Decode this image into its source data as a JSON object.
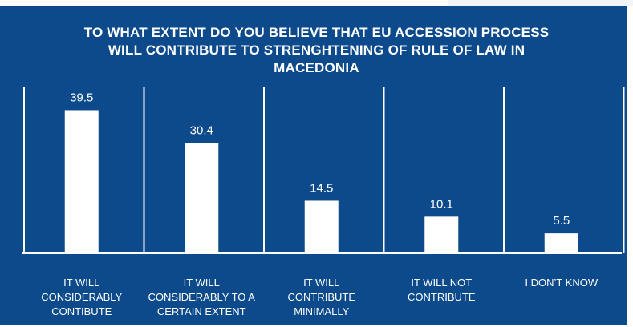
{
  "chart_data": {
    "type": "bar",
    "title_lines": [
      "TO WHAT EXTENT DO YOU BELIEVE THAT EU ACCESSION PROCESS",
      "WILL CONTRIBUTE TO STRENGHTENING OF RULE OF LAW IN",
      "MACEDONIA"
    ],
    "categories": [
      "IT WILL CONSIDERABLY CONTIBUTE",
      "IT WILL CONSIDERABLY TO A CERTAIN EXTENT",
      "IT WILL CONTRIBUTE MINIMALLY",
      "IT WILL NOT CONTRIBUTE",
      "I DON’T KNOW"
    ],
    "category_lines": [
      [
        "IT WILL",
        "CONSIDERABLY",
        "CONTIBUTE"
      ],
      [
        "IT WILL",
        "CONSIDERABLY TO A",
        "CERTAIN EXTENT"
      ],
      [
        "IT WILL",
        "CONTRIBUTE",
        "MINIMALLY"
      ],
      [
        "IT WILL NOT",
        "CONTRIBUTE"
      ],
      [
        "I DON’T KNOW"
      ]
    ],
    "values": [
      39.5,
      30.4,
      14.5,
      10.1,
      5.5
    ],
    "data_labels": [
      "39.5",
      "30.4",
      "14.5",
      "10.1",
      "5.5"
    ],
    "xlabel": "",
    "ylabel": "",
    "ylim": [
      0,
      50
    ],
    "grid": false,
    "legend": "none",
    "colors": {
      "background": "#0d4a8c",
      "bar": "#ffffff",
      "text": "#ffffff"
    }
  }
}
